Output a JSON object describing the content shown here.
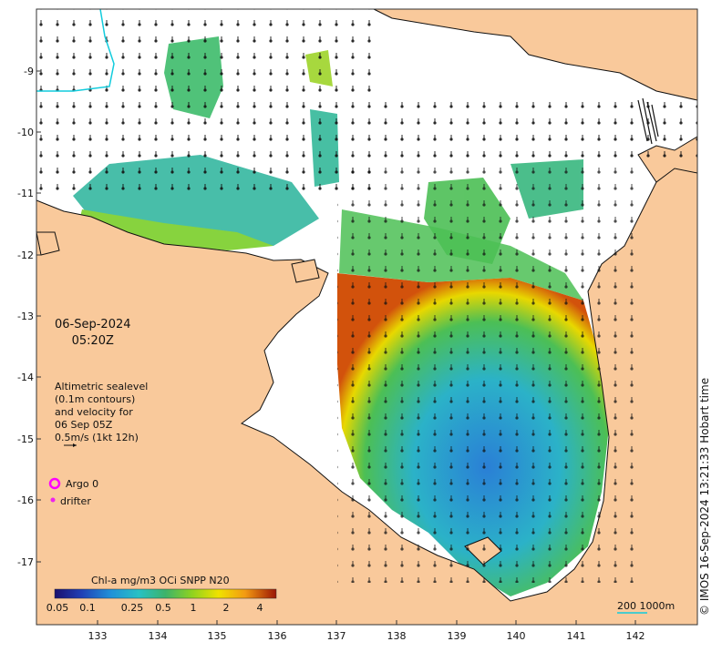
{
  "map": {
    "date": "06-Sep-2024",
    "time": "05:20Z",
    "legend_lines": [
      "Altimetric sealevel",
      "(0.1m contours)",
      "and velocity for",
      "06 Sep 05Z",
      "0.5m/s (1kt 12h)"
    ],
    "argo_label": "Argo 0",
    "drifter_label": "drifter",
    "colorbar_title": "Chl-a mg/m3 OCi SNPP N20",
    "colorbar_ticks": [
      "0.05",
      "0.1",
      "0.25",
      "0.5",
      "1",
      "2",
      "4"
    ],
    "scale_label": "200  1000m",
    "credit": "© IMOS 16-Sep-2024 13:21:33 Hobart time",
    "x_ticks": [
      "133",
      "134",
      "135",
      "136",
      "137",
      "138",
      "139",
      "140",
      "141",
      "142"
    ],
    "y_ticks": [
      "-9",
      "-10",
      "-11",
      "-12",
      "-13",
      "-14",
      "-15",
      "-16",
      "-17"
    ],
    "colors": {
      "land": "#f9c99b",
      "argo": "#ff00ff",
      "drifter": "#ee22ee",
      "contour": "#11ccdd"
    }
  }
}
